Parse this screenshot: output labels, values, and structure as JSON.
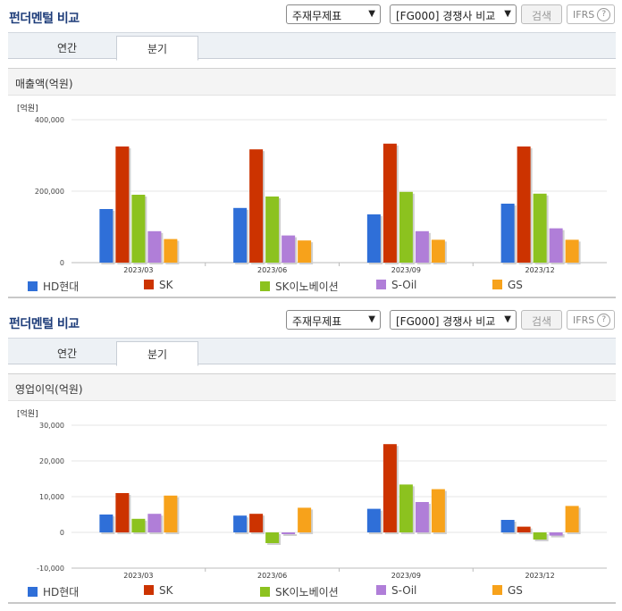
{
  "panels": [
    {
      "title": "펀더멘털 비교",
      "select1": "주재무제표",
      "select2": "[FG000] 경쟁사 비교",
      "search_label": "검색",
      "ifrs_label": "IFRS",
      "ifrs_help": "?",
      "tabs": [
        {
          "label": "연간"
        },
        {
          "label": "분기"
        }
      ],
      "active_tab": 1
    },
    {
      "title": "펀더멘털 비교",
      "select1": "주재무제표",
      "select2": "[FG000] 경쟁사 비교",
      "search_label": "검색",
      "ifrs_label": "IFRS",
      "ifrs_help": "?",
      "tabs": [
        {
          "label": "연간"
        },
        {
          "label": "분기"
        }
      ],
      "active_tab": 1
    }
  ],
  "chart_data": [
    {
      "type": "bar",
      "title": "매출액(억원)",
      "unit_label": "[억원]",
      "categories": [
        "2023/03",
        "2023/06",
        "2023/09",
        "2023/12"
      ],
      "ylim": [
        0,
        400000
      ],
      "yticks": [
        0,
        200000,
        400000
      ],
      "ytick_labels": [
        "0",
        "200,000",
        "400,000"
      ],
      "grid": true,
      "legend_position": "bottom",
      "series": [
        {
          "name": "HD현대",
          "color": "#2f6fd8",
          "values": [
            150000,
            153000,
            135000,
            165000
          ]
        },
        {
          "name": "SK",
          "color": "#cc3300",
          "values": [
            325000,
            317000,
            333000,
            325000
          ]
        },
        {
          "name": "SK이노베이션",
          "color": "#8cc21f",
          "values": [
            190000,
            185000,
            198000,
            193000
          ]
        },
        {
          "name": "S-Oil",
          "color": "#b07ed8",
          "values": [
            88000,
            76000,
            88000,
            96000
          ]
        },
        {
          "name": "GS",
          "color": "#f7a21b",
          "values": [
            66000,
            62000,
            64000,
            64000
          ]
        }
      ]
    },
    {
      "type": "bar",
      "title": "영업이익(억원)",
      "unit_label": "[억원]",
      "categories": [
        "2023/03",
        "2023/06",
        "2023/09",
        "2023/12"
      ],
      "ylim": [
        -10000,
        30000
      ],
      "yticks": [
        -10000,
        0,
        10000,
        20000,
        30000
      ],
      "ytick_labels": [
        "-10,000",
        "0",
        "10,000",
        "20,000",
        "30,000"
      ],
      "grid": true,
      "legend_position": "bottom",
      "series": [
        {
          "name": "HD현대",
          "color": "#2f6fd8",
          "values": [
            5000,
            4700,
            6600,
            3500
          ]
        },
        {
          "name": "SK",
          "color": "#cc3300",
          "values": [
            11000,
            5200,
            24700,
            1600
          ]
        },
        {
          "name": "SK이노베이션",
          "color": "#8cc21f",
          "values": [
            3800,
            -3000,
            13400,
            -2000
          ]
        },
        {
          "name": "S-Oil",
          "color": "#b07ed8",
          "values": [
            5200,
            -500,
            8500,
            -900
          ]
        },
        {
          "name": "GS",
          "color": "#f7a21b",
          "values": [
            10300,
            6900,
            12100,
            7400
          ]
        }
      ]
    }
  ]
}
